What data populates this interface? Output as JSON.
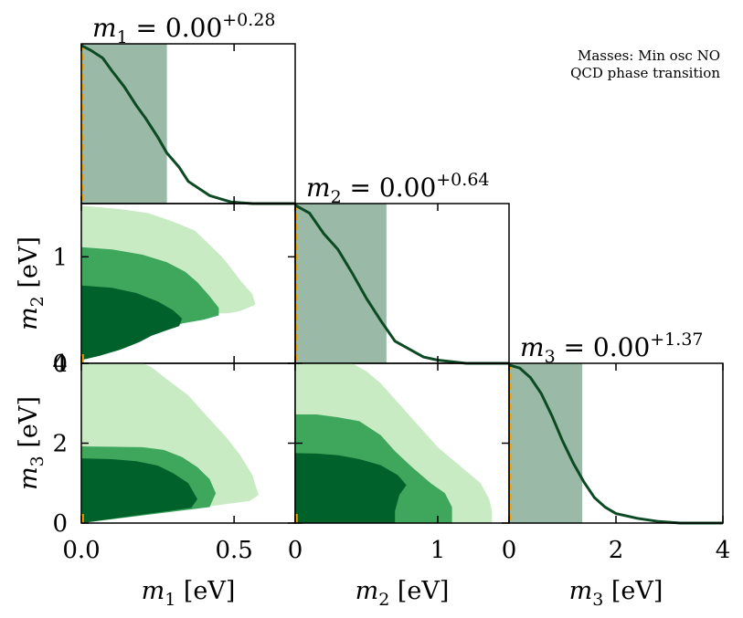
{
  "chart_data": {
    "type": "corner",
    "annotation_lines": [
      "Masses: Min osc NO",
      "QCD phase transition"
    ],
    "colors": {
      "level_inner": "#00612b",
      "level_mid": "#3ea75c",
      "level_outer": "#c8ebc4",
      "band": "#9ab9a7",
      "curve": "#0c4a23",
      "best_fit": "#f5a300",
      "frame": "#000000"
    },
    "parameters": [
      {
        "name": "m1",
        "symbol": "m",
        "subscript": "1",
        "title_value": "0.00",
        "title_upper": "+0.28",
        "axis_label": "m1 [eV]",
        "unit": "[eV]",
        "range": [
          0.0,
          0.7
        ],
        "ticks": [
          0.0,
          0.5
        ],
        "tick_labels": [
          "0.0",
          "0.5"
        ],
        "best_fit": 0.0,
        "band": [
          0.0,
          0.28
        ],
        "posterior_x": [
          0.0,
          0.03,
          0.07,
          0.1,
          0.14,
          0.18,
          0.21,
          0.25,
          0.28,
          0.32,
          0.35,
          0.42,
          0.49,
          0.56,
          0.63,
          0.7
        ],
        "posterior_y": [
          1.0,
          0.97,
          0.92,
          0.84,
          0.74,
          0.62,
          0.54,
          0.42,
          0.32,
          0.23,
          0.14,
          0.05,
          0.01,
          0.0,
          0.0,
          0.0
        ]
      },
      {
        "name": "m2",
        "symbol": "m",
        "subscript": "2",
        "title_value": "0.00",
        "title_upper": "+0.64",
        "axis_label": "m2 [eV]",
        "unit": "[eV]",
        "range": [
          0.0,
          1.5
        ],
        "ticks": [
          0,
          1
        ],
        "tick_labels": [
          "0",
          "1"
        ],
        "best_fit": 0.0,
        "band": [
          0.0,
          0.64
        ],
        "posterior_x": [
          0.0,
          0.1,
          0.2,
          0.3,
          0.4,
          0.5,
          0.6,
          0.7,
          0.8,
          0.9,
          1.0,
          1.1,
          1.2,
          1.3,
          1.4,
          1.5
        ],
        "posterior_y": [
          1.0,
          0.95,
          0.82,
          0.72,
          0.57,
          0.41,
          0.27,
          0.14,
          0.09,
          0.04,
          0.02,
          0.01,
          0.0,
          0.0,
          0.0,
          0.0
        ]
      },
      {
        "name": "m3",
        "symbol": "m",
        "subscript": "3",
        "title_value": "0.00",
        "title_upper": "+1.37",
        "axis_label": "m3 [eV]",
        "unit": "[eV]",
        "range": [
          0.0,
          4.0
        ],
        "ticks": [
          0,
          2,
          4
        ],
        "tick_labels": [
          "0",
          "2",
          "4"
        ],
        "best_fit": 0.0,
        "band": [
          0.0,
          1.37
        ],
        "posterior_x": [
          0.0,
          0.2,
          0.4,
          0.6,
          0.8,
          1.0,
          1.2,
          1.4,
          1.6,
          1.8,
          2.0,
          2.4,
          2.8,
          3.2,
          3.6,
          4.0
        ],
        "posterior_y": [
          1.0,
          0.98,
          0.92,
          0.82,
          0.68,
          0.52,
          0.38,
          0.26,
          0.16,
          0.1,
          0.06,
          0.03,
          0.01,
          0.0,
          0.0,
          0.0
        ]
      }
    ],
    "contours": [
      {
        "x_param": "m1",
        "y_param": "m2",
        "levels": [
          {
            "level": "outer",
            "polygon": [
              [
                0,
                0.06
              ],
              [
                0.07,
                0.13
              ],
              [
                0.14,
                0.2
              ],
              [
                0.2,
                0.28
              ],
              [
                0.25,
                0.38
              ],
              [
                0.3,
                0.4
              ],
              [
                0.36,
                0.43
              ],
              [
                0.42,
                0.47
              ],
              [
                0.48,
                0.47
              ],
              [
                0.52,
                0.49
              ],
              [
                0.57,
                0.55
              ],
              [
                0.56,
                0.65
              ],
              [
                0.52,
                0.78
              ],
              [
                0.48,
                0.93
              ],
              [
                0.46,
                1.0
              ],
              [
                0.41,
                1.14
              ],
              [
                0.37,
                1.25
              ],
              [
                0.3,
                1.33
              ],
              [
                0.22,
                1.41
              ],
              [
                0.12,
                1.45
              ],
              [
                0,
                1.48
              ]
            ]
          },
          {
            "level": "mid",
            "polygon": [
              [
                0,
                0.04
              ],
              [
                0.08,
                0.1
              ],
              [
                0.15,
                0.17
              ],
              [
                0.22,
                0.25
              ],
              [
                0.27,
                0.34
              ],
              [
                0.34,
                0.38
              ],
              [
                0.4,
                0.41
              ],
              [
                0.45,
                0.45
              ],
              [
                0.45,
                0.52
              ],
              [
                0.42,
                0.63
              ],
              [
                0.38,
                0.76
              ],
              [
                0.34,
                0.86
              ],
              [
                0.28,
                0.95
              ],
              [
                0.2,
                1.02
              ],
              [
                0.1,
                1.07
              ],
              [
                0,
                1.09
              ]
            ]
          },
          {
            "level": "inner",
            "polygon": [
              [
                0,
                0.03
              ],
              [
                0.06,
                0.07
              ],
              [
                0.13,
                0.13
              ],
              [
                0.19,
                0.2
              ],
              [
                0.23,
                0.26
              ],
              [
                0.28,
                0.31
              ],
              [
                0.32,
                0.35
              ],
              [
                0.33,
                0.42
              ],
              [
                0.3,
                0.5
              ],
              [
                0.25,
                0.58
              ],
              [
                0.18,
                0.66
              ],
              [
                0.1,
                0.71
              ],
              [
                0,
                0.73
              ]
            ]
          }
        ]
      },
      {
        "x_param": "m1",
        "y_param": "m3",
        "levels": [
          {
            "level": "outer",
            "polygon": [
              [
                0,
                0
              ],
              [
                0.55,
                0.55
              ],
              [
                0.58,
                0.7
              ],
              [
                0.56,
                1.2
              ],
              [
                0.52,
                1.7
              ],
              [
                0.48,
                2.1
              ],
              [
                0.42,
                2.6
              ],
              [
                0.35,
                3.2
              ],
              [
                0.28,
                3.6
              ],
              [
                0.23,
                3.9
              ],
              [
                0.2,
                4.0
              ],
              [
                0,
                4.0
              ]
            ]
          },
          {
            "level": "mid",
            "polygon": [
              [
                0,
                0
              ],
              [
                0.42,
                0.4
              ],
              [
                0.44,
                0.75
              ],
              [
                0.42,
                1.1
              ],
              [
                0.38,
                1.4
              ],
              [
                0.33,
                1.65
              ],
              [
                0.27,
                1.83
              ],
              [
                0.2,
                1.9
              ],
              [
                0,
                1.92
              ]
            ]
          },
          {
            "level": "inner",
            "polygon": [
              [
                0,
                0
              ],
              [
                0.36,
                0.38
              ],
              [
                0.38,
                0.6
              ],
              [
                0.35,
                1.0
              ],
              [
                0.3,
                1.25
              ],
              [
                0.25,
                1.44
              ],
              [
                0.18,
                1.55
              ],
              [
                0.1,
                1.6
              ],
              [
                0,
                1.62
              ]
            ]
          }
        ]
      },
      {
        "x_param": "m2",
        "y_param": "m3",
        "levels": [
          {
            "level": "outer",
            "polygon": [
              [
                0,
                0
              ],
              [
                1.38,
                0
              ],
              [
                1.38,
                0.3
              ],
              [
                1.36,
                0.6
              ],
              [
                1.3,
                1.0
              ],
              [
                1.2,
                1.3
              ],
              [
                1.1,
                1.6
              ],
              [
                1.0,
                1.9
              ],
              [
                0.9,
                2.3
              ],
              [
                0.8,
                2.7
              ],
              [
                0.7,
                3.1
              ],
              [
                0.6,
                3.5
              ],
              [
                0.5,
                3.8
              ],
              [
                0.4,
                4.0
              ],
              [
                0,
                4.0
              ]
            ]
          },
          {
            "level": "mid",
            "polygon": [
              [
                0,
                0
              ],
              [
                1.1,
                0
              ],
              [
                1.1,
                0.4
              ],
              [
                1.05,
                0.75
              ],
              [
                0.95,
                1.0
              ],
              [
                0.82,
                1.4
              ],
              [
                0.7,
                1.8
              ],
              [
                0.6,
                2.2
              ],
              [
                0.45,
                2.55
              ],
              [
                0.3,
                2.65
              ],
              [
                0.15,
                2.72
              ],
              [
                0,
                2.72
              ]
            ]
          },
          {
            "level": "inner",
            "polygon": [
              [
                0,
                0
              ],
              [
                0.7,
                0
              ],
              [
                0.7,
                0.3
              ],
              [
                0.73,
                0.7
              ],
              [
                0.78,
                0.95
              ],
              [
                0.72,
                1.2
              ],
              [
                0.6,
                1.45
              ],
              [
                0.45,
                1.6
              ],
              [
                0.3,
                1.7
              ],
              [
                0.15,
                1.74
              ],
              [
                0,
                1.75
              ]
            ]
          }
        ]
      }
    ]
  }
}
